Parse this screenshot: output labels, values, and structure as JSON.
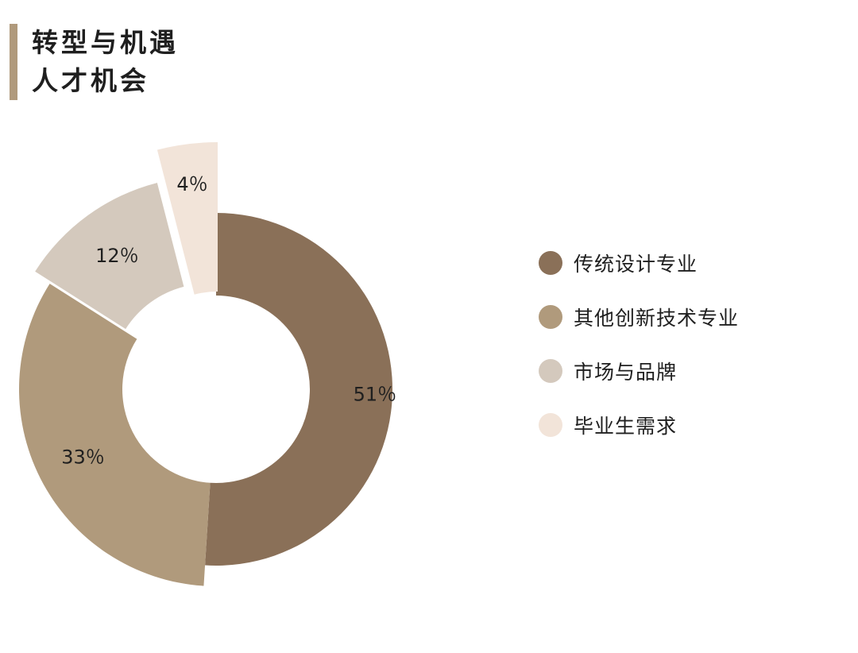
{
  "title": {
    "line1": "转型与机遇",
    "line2": "人才机会"
  },
  "chart_data": {
    "type": "pie",
    "donut": true,
    "exploded": true,
    "legend_position": "right",
    "slices": [
      {
        "name": "传统设计专业",
        "value": 51,
        "label": "51％",
        "color": "#8a7058"
      },
      {
        "name": "其他创新技术专业",
        "value": 33,
        "label": "33％",
        "color": "#b09a7c"
      },
      {
        "name": "市场与品牌",
        "value": 12,
        "label": "12％",
        "color": "#d4c9bd"
      },
      {
        "name": "毕业生需求",
        "value": 4,
        "label": "4％",
        "color": "#f2e4d9"
      }
    ]
  }
}
